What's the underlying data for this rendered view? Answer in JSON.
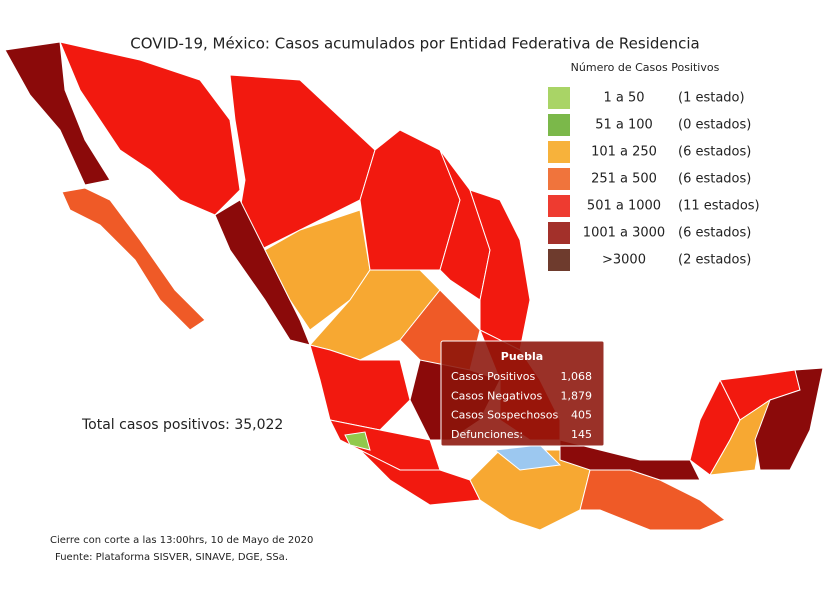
{
  "title": "COVID-19, México: Casos acumulados por Entidad Federativa de Residencia",
  "legend": {
    "title": "Número de Casos Positivos",
    "items": [
      {
        "range": "1 a 50",
        "count": "(1 estado)",
        "color": "#a9d466"
      },
      {
        "range": "51 a 100",
        "count": "(0 estados)",
        "color": "#7bb84a"
      },
      {
        "range": "101 a 250",
        "count": "(6 estados)",
        "color": "#f7b23b"
      },
      {
        "range": "251 a 500",
        "count": "(6 estados)",
        "color": "#f0743c"
      },
      {
        "range": "501 a 1000",
        "count": "(11 estados)",
        "color": "#ee3b30"
      },
      {
        "range": "1001 a 3000",
        "count": "(6 estados)",
        "color": "#a3302a"
      },
      {
        "range": ">3000",
        "count": "(2 estados)",
        "color": "#6e3b2d"
      }
    ]
  },
  "tooltip": {
    "title": "Puebla",
    "rows": [
      {
        "label": "Casos Positivos",
        "value": "1,068"
      },
      {
        "label": "Casos Negativos",
        "value": "1,879"
      },
      {
        "label": "Casos Sospechosos",
        "value": "405"
      },
      {
        "label": "Defunciones:",
        "value": "145"
      }
    ]
  },
  "total": "Total casos positivos: 35,022",
  "footnotes": [
    "Cierre con corte a las 13:00hrs, 10 de Mayo de 2020",
    "Fuente: Plataforma SISVER, SINAVE, DGE, SSa."
  ]
}
